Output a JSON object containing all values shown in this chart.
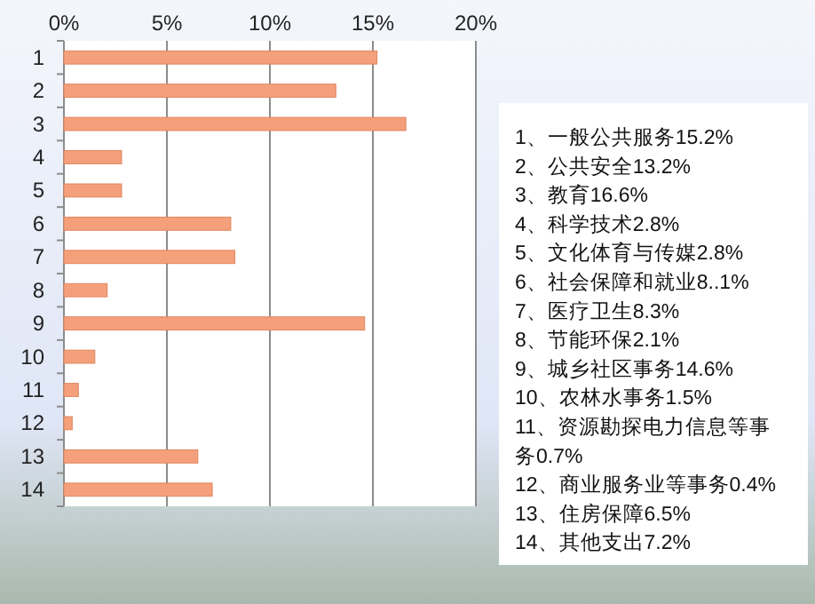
{
  "chart_data": {
    "type": "bar",
    "orientation": "horizontal",
    "categories": [
      "1",
      "2",
      "3",
      "4",
      "5",
      "6",
      "7",
      "8",
      "9",
      "10",
      "11",
      "12",
      "13",
      "14"
    ],
    "values": [
      15.2,
      13.2,
      16.6,
      2.8,
      2.8,
      8.1,
      8.3,
      2.1,
      14.6,
      1.5,
      0.7,
      0.4,
      6.5,
      7.2
    ],
    "color": "#f4a07a",
    "xlim": [
      0,
      20
    ],
    "xticks": [
      {
        "value": 0,
        "label": "0%"
      },
      {
        "value": 5,
        "label": "5%"
      },
      {
        "value": 10,
        "label": "10%"
      },
      {
        "value": 15,
        "label": "15%"
      },
      {
        "value": 20,
        "label": "20%"
      }
    ],
    "grid": "x",
    "annotations": [
      "1、一般公共服务15.2%",
      "2、公共安全13.2%",
      "3、教育16.6%",
      "4、科学技术2.8%",
      "5、文化体育与传媒2.8%",
      "6、社会保障和就业8..1%",
      "7、医疗卫生8.3%",
      "8、节能环保2.1%",
      "9、城乡社区事务14.6%",
      "10、农林水事务1.5%",
      "11、资源勘探电力信息等事务0.7%",
      "12、商业服务业等事务0.4%",
      "13、住房保障6.5%",
      "14、其他支出7.2%"
    ]
  }
}
